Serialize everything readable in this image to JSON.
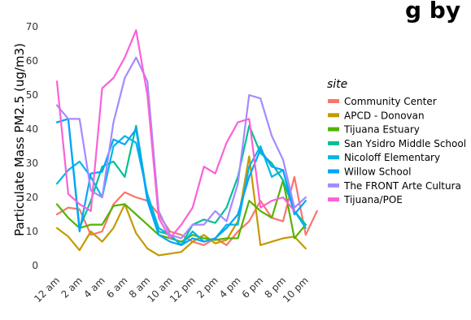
{
  "chart_data": {
    "type": "line",
    "title_partial": "g by",
    "ylabel": "Particulate Mass PM2.5 (ug/m3)",
    "xlabel": "",
    "ylim": [
      0,
      70
    ],
    "yticks": [
      0,
      10,
      20,
      30,
      40,
      50,
      60,
      70
    ],
    "x_tick_labels": [
      "12 am",
      "2 am",
      "4 am",
      "6 am",
      "8 am",
      "10 am",
      "12 pm",
      "2 pm",
      "4 pm",
      "6 pm",
      "8 pm",
      "10 pm"
    ],
    "x": [
      0,
      1,
      2,
      3,
      4,
      5,
      6,
      7,
      8,
      9,
      10,
      11,
      12,
      13,
      14,
      15,
      16,
      17,
      18,
      19,
      20,
      21,
      22,
      23
    ],
    "grid": false,
    "legend": {
      "title": "site",
      "position": "right"
    },
    "series": [
      {
        "name": "Community Center",
        "color": "#F8766D",
        "values": [
          15,
          17,
          16.5,
          9,
          10,
          18,
          21.5,
          20,
          19,
          15,
          10,
          9,
          7,
          6,
          8,
          6,
          10,
          13,
          19,
          14,
          13,
          26,
          9,
          16
        ]
      },
      {
        "name": "APCD - Donovan",
        "color": "#C49A00",
        "values": [
          11,
          8.5,
          4.5,
          10,
          7,
          11,
          18,
          9.5,
          5,
          3,
          3.5,
          4,
          7,
          9,
          6.5,
          7.5,
          13,
          32,
          6,
          7,
          8,
          8.5,
          5,
          null
        ]
      },
      {
        "name": "Tijuana Estuary",
        "color": "#53B400",
        "values": [
          18,
          14,
          11,
          12,
          12,
          17.5,
          18,
          15,
          12,
          9,
          8,
          7,
          9,
          8,
          7.5,
          8,
          8,
          19,
          16,
          14,
          25,
          8,
          12,
          null
        ]
      },
      {
        "name": "San Ysidro Middle School",
        "color": "#00C094",
        "values": [
          42,
          43,
          11,
          19,
          29,
          30.5,
          26,
          41,
          20,
          10,
          9,
          6,
          12,
          13.5,
          12.5,
          17,
          26,
          41,
          33,
          30,
          25,
          16,
          12,
          null
        ]
      },
      {
        "name": "Nicoloff Elementary",
        "color": "#00B6EB",
        "values": [
          24,
          28,
          30.5,
          26,
          20,
          35,
          38,
          36,
          21,
          11,
          9,
          6,
          10,
          7,
          8,
          12,
          12,
          29,
          35,
          26,
          28,
          16,
          11,
          null
        ]
      },
      {
        "name": "Willow School",
        "color": "#06A4FF",
        "values": [
          42,
          43,
          10,
          27,
          27.5,
          37,
          35.5,
          40,
          19,
          9,
          7,
          6,
          8,
          7,
          8,
          11,
          15,
          26,
          34,
          29,
          28,
          15,
          19,
          null
        ]
      },
      {
        "name": "The FRONT Arte Cultura",
        "color": "#A58AFF",
        "values": [
          47,
          43,
          43,
          22,
          20,
          42,
          55,
          61,
          54,
          16,
          9,
          8,
          12,
          12,
          16,
          13,
          24,
          50,
          49,
          38,
          31,
          17,
          20,
          null
        ]
      },
      {
        "name": "Tijuana/POE",
        "color": "#FB61D7",
        "values": [
          54,
          21,
          18,
          16,
          52,
          55,
          61,
          69,
          50,
          14,
          8,
          12,
          17,
          29,
          27,
          36,
          42,
          43,
          17,
          19,
          20,
          16,
          null,
          null
        ]
      }
    ]
  }
}
